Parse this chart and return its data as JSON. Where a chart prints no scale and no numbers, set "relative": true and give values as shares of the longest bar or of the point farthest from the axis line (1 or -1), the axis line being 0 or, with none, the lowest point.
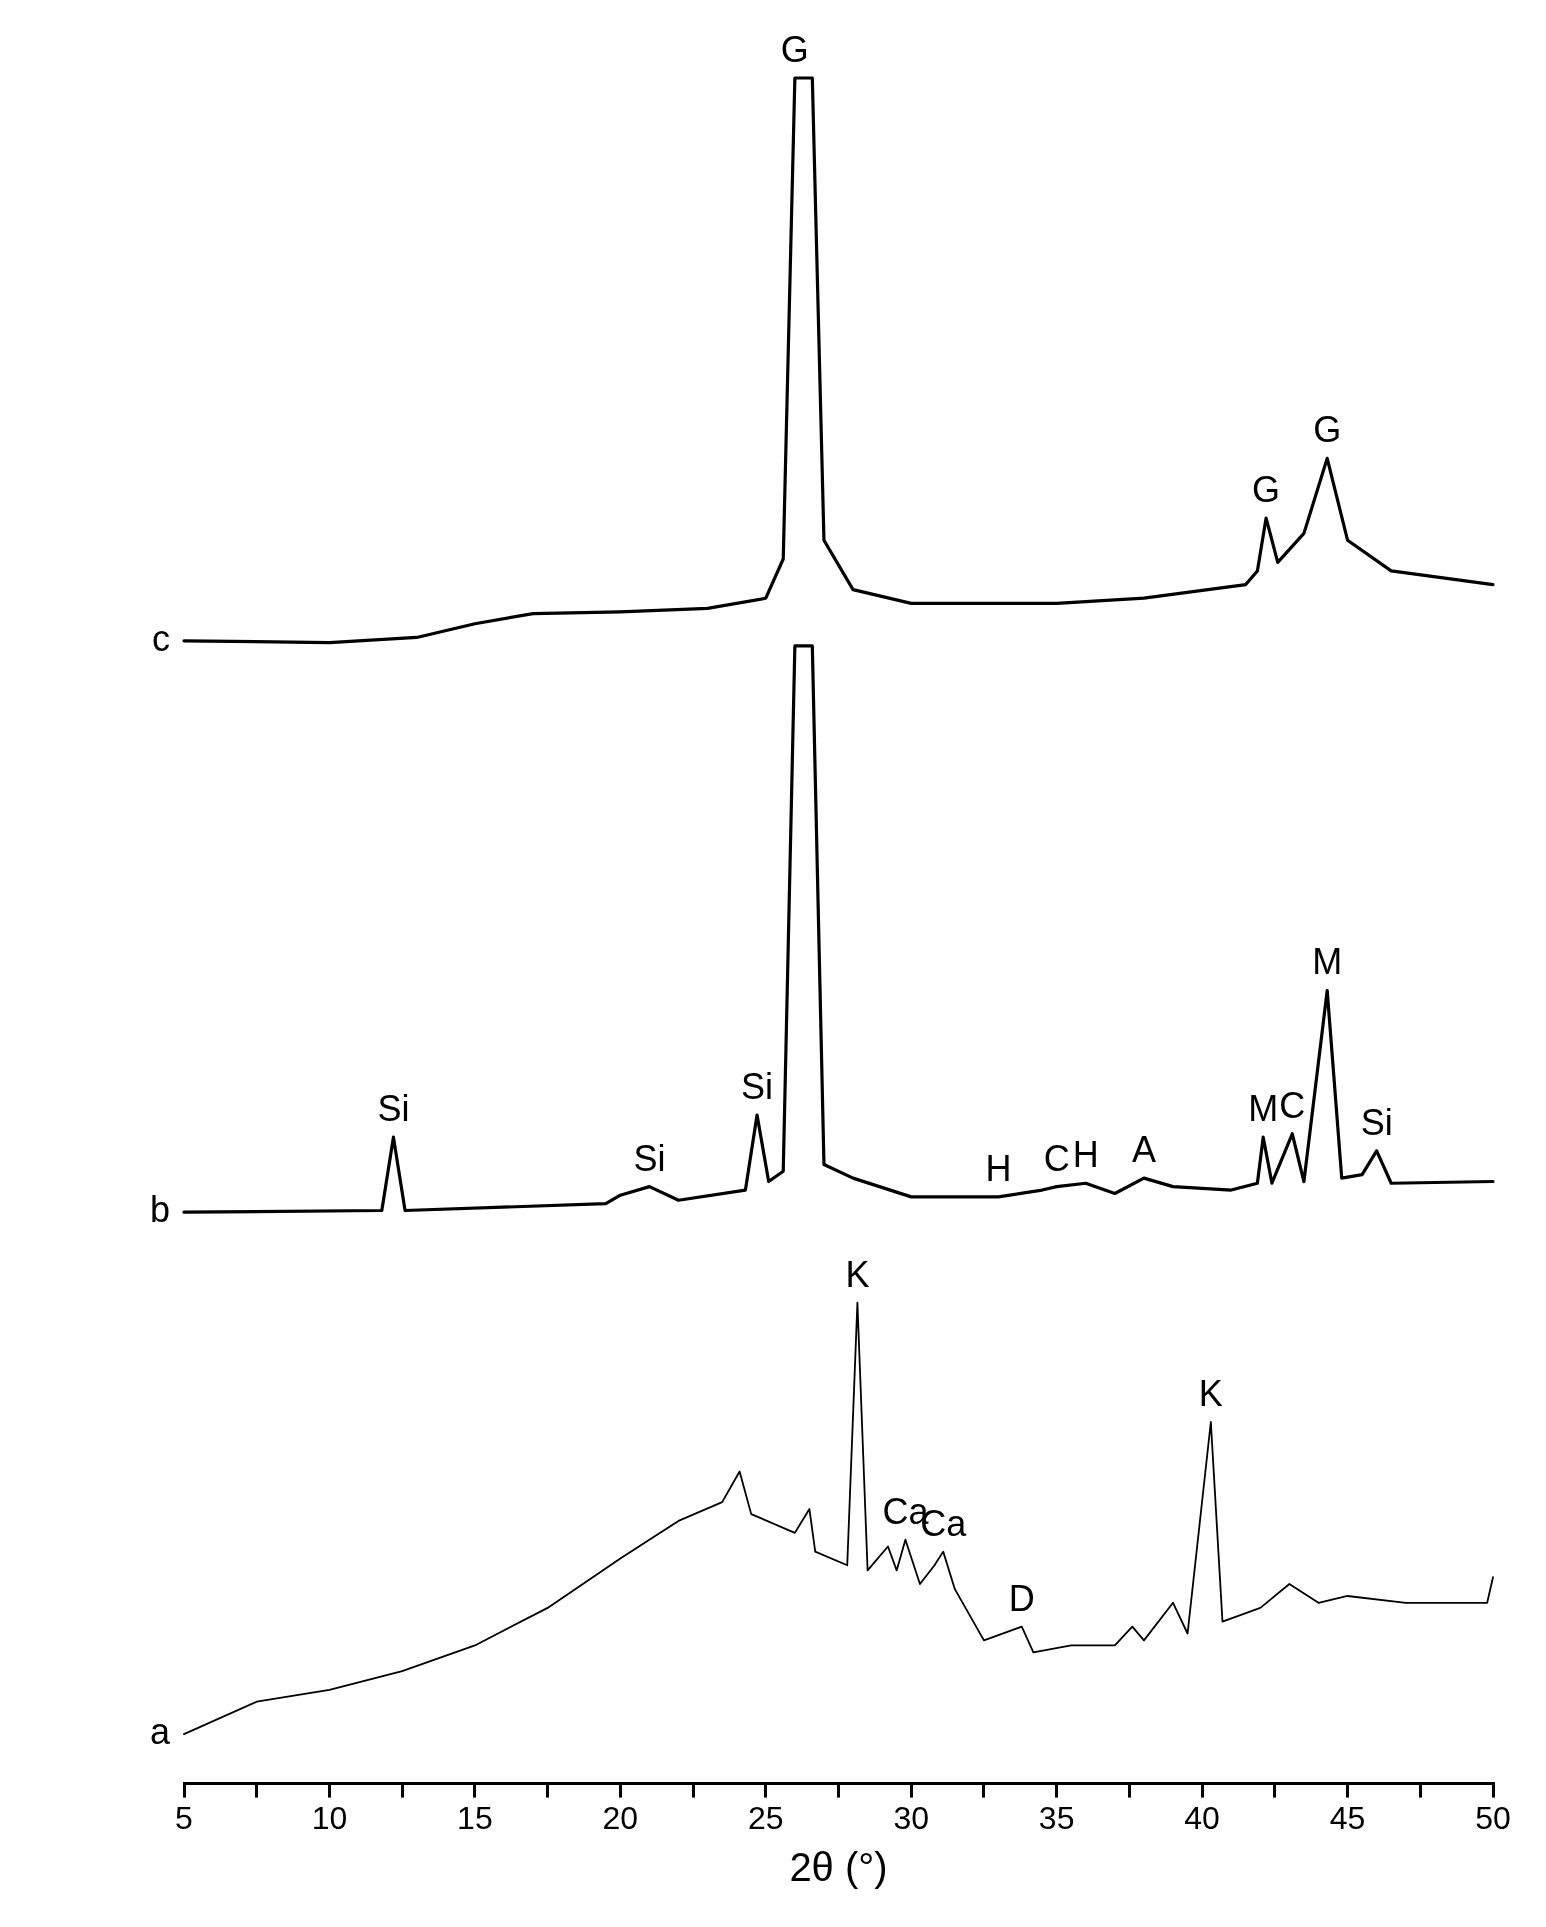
{
  "chart_data": {
    "type": "line",
    "relative": true,
    "xlabel": "2θ (°)",
    "xlim": [
      5,
      50
    ],
    "xticks": [
      5,
      {
        "value": 7.5,
        "label": null
      },
      10,
      {
        "value": 12.5,
        "label": null
      },
      15,
      {
        "value": 17.5,
        "label": null
      },
      20,
      {
        "value": 22.5,
        "label": null
      },
      25,
      {
        "value": 27.5,
        "label": null
      },
      30,
      {
        "value": 32.5,
        "label": null
      },
      35,
      {
        "value": 37.5,
        "label": null
      },
      40,
      {
        "value": 42.5,
        "label": null
      },
      45,
      {
        "value": 47.5,
        "label": null
      },
      50
    ],
    "legend": false,
    "marker": "none",
    "line_style": "solid",
    "series": [
      {
        "name": "a",
        "color": "#000000",
        "x": [
          5,
          7.5,
          10,
          12.5,
          15,
          17.5,
          20,
          22,
          23.5,
          24.1,
          24.5,
          26,
          26.5,
          26.7,
          27.8,
          28.15,
          28.5,
          29.2,
          29.5,
          29.8,
          30.3,
          30.8,
          31.1,
          31.5,
          32.5,
          33.8,
          34.2,
          35.5,
          37,
          37.6,
          38,
          39,
          39.5,
          40.3,
          40.7,
          42,
          43,
          44,
          45,
          47,
          49.8,
          50
        ],
        "values": [
          0.029,
          0.048,
          0.055,
          0.066,
          0.081,
          0.103,
          0.132,
          0.154,
          0.165,
          0.183,
          0.158,
          0.147,
          0.161,
          0.136,
          0.128,
          0.282,
          0.125,
          0.139,
          0.125,
          0.143,
          0.117,
          0.128,
          0.136,
          0.114,
          0.084,
          0.092,
          0.077,
          0.081,
          0.081,
          0.092,
          0.084,
          0.106,
          0.088,
          0.212,
          0.095,
          0.103,
          0.117,
          0.106,
          0.11,
          0.106,
          0.106,
          0.121
        ]
      },
      {
        "name": "b",
        "color": "#000000",
        "x": [
          5,
          11.8,
          12.2,
          12.6,
          19.5,
          20,
          21,
          22,
          24.3,
          24.7,
          25.1,
          25.6,
          26,
          26.6,
          27,
          28,
          30,
          33,
          34.5,
          35,
          36,
          37,
          38,
          39,
          41,
          41.9,
          42.1,
          42.4,
          43.1,
          43.5,
          44.3,
          44.8,
          45.5,
          46,
          46.5,
          50
        ],
        "values": [
          0.335,
          0.336,
          0.379,
          0.336,
          0.34,
          0.345,
          0.35,
          0.342,
          0.348,
          0.392,
          0.353,
          0.359,
          0.667,
          0.667,
          0.363,
          0.355,
          0.344,
          0.344,
          0.348,
          0.35,
          0.352,
          0.346,
          0.355,
          0.35,
          0.348,
          0.352,
          0.379,
          0.352,
          0.381,
          0.353,
          0.465,
          0.355,
          0.357,
          0.371,
          0.352,
          0.353
        ]
      },
      {
        "name": "c",
        "color": "#000000",
        "x": [
          5,
          10,
          13,
          15,
          17,
          20,
          23,
          25,
          25.6,
          26,
          26.6,
          27,
          28,
          30,
          35,
          38,
          41.5,
          41.9,
          42.2,
          42.6,
          43.5,
          44.3,
          45,
          46.5,
          50
        ],
        "values": [
          0.67,
          0.669,
          0.672,
          0.68,
          0.686,
          0.687,
          0.689,
          0.695,
          0.718,
          1,
          1,
          0.729,
          0.7,
          0.692,
          0.692,
          0.695,
          0.703,
          0.711,
          0.742,
          0.716,
          0.733,
          0.777,
          0.729,
          0.711,
          0.703
        ]
      }
    ],
    "annotations": [
      {
        "text": "G",
        "x": 26,
        "y": 1
      },
      {
        "text": "G",
        "x": 42.2,
        "y": 0.742
      },
      {
        "text": "G",
        "x": 44.3,
        "y": 0.777
      },
      {
        "text": "Si",
        "x": 12.2,
        "y": 0.379
      },
      {
        "text": "Si",
        "x": 21,
        "y": 0.35
      },
      {
        "text": "Si",
        "x": 24.7,
        "y": 0.392
      },
      {
        "text": "H",
        "x": 33,
        "y": 0.344
      },
      {
        "text": "C",
        "x": 35,
        "y": 0.35
      },
      {
        "text": "H",
        "x": 36,
        "y": 0.352
      },
      {
        "text": "A",
        "x": 38,
        "y": 0.355
      },
      {
        "text": "M",
        "x": 42.1,
        "y": 0.379
      },
      {
        "text": "C",
        "x": 43.1,
        "y": 0.381
      },
      {
        "text": "M",
        "x": 44.3,
        "y": 0.465
      },
      {
        "text": "Si",
        "x": 46,
        "y": 0.371
      },
      {
        "text": "K",
        "x": 28.15,
        "y": 0.282
      },
      {
        "text": "Ca",
        "x": 29.8,
        "y": 0.143
      },
      {
        "text": "Ca",
        "x": 31.1,
        "y": 0.136
      },
      {
        "text": "D",
        "x": 33.8,
        "y": 0.092
      },
      {
        "text": "K",
        "x": 40.3,
        "y": 0.212
      }
    ]
  }
}
